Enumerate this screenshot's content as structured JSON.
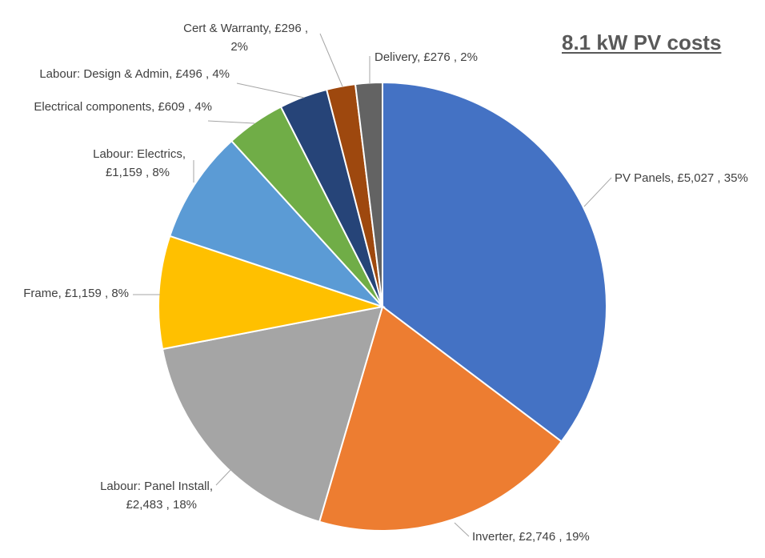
{
  "chart_data": {
    "type": "pie",
    "title": "8.1 kW PV costs",
    "currency": "£",
    "slices": [
      {
        "category": "PV Panels",
        "value": 5027,
        "value_label": "£5,027",
        "percent_label": "35%",
        "color": "#4472C4"
      },
      {
        "category": "Inverter",
        "value": 2746,
        "value_label": "£2,746",
        "percent_label": "19%",
        "color": "#ED7D31"
      },
      {
        "category": "Labour: Panel Install",
        "value": 2483,
        "value_label": "£2,483",
        "percent_label": "18%",
        "color": "#A5A5A5"
      },
      {
        "category": "Frame",
        "value": 1159,
        "value_label": "£1,159",
        "percent_label": "8%",
        "color": "#FFC000"
      },
      {
        "category": "Labour: Electrics",
        "value": 1159,
        "value_label": "£1,159",
        "percent_label": "8%",
        "color": "#5B9BD5"
      },
      {
        "category": "Electrical components",
        "value": 609,
        "value_label": "£609",
        "percent_label": "4%",
        "color": "#70AD47"
      },
      {
        "category": "Labour: Design & Admin",
        "value": 496,
        "value_label": "£496",
        "percent_label": "4%",
        "color": "#264478"
      },
      {
        "category": "Cert & Warranty",
        "value": 296,
        "value_label": "£296",
        "percent_label": "2%",
        "color": "#9E480E"
      },
      {
        "category": "Delivery",
        "value": 276,
        "value_label": "£276",
        "percent_label": "2%",
        "color": "#636363"
      }
    ],
    "data_labels": [
      {
        "lines": [
          "PV Panels,  £5,027 , 35%"
        ]
      },
      {
        "lines": [
          "Inverter,  £2,746 , 19%"
        ]
      },
      {
        "lines": [
          "Labour: Panel Install,",
          "£2,483 , 18%"
        ]
      },
      {
        "lines": [
          "Frame,  £1,159 , 8%"
        ]
      },
      {
        "lines": [
          "Labour: Electrics,",
          "£1,159 , 8%"
        ]
      },
      {
        "lines": [
          "Electrical components,  £609 , 4%"
        ]
      },
      {
        "lines": [
          "Labour: Design & Admin,  £496 , 4%"
        ]
      },
      {
        "lines": [
          "Cert & Warranty,  £296 ,",
          "2%"
        ]
      },
      {
        "lines": [
          "Delivery,  £276 , 2%"
        ]
      }
    ],
    "legend": "none"
  }
}
